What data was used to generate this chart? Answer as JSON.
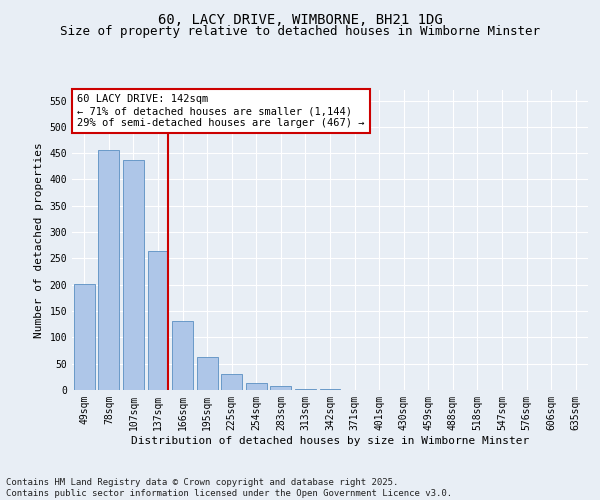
{
  "title1": "60, LACY DRIVE, WIMBORNE, BH21 1DG",
  "title2": "Size of property relative to detached houses in Wimborne Minster",
  "xlabel": "Distribution of detached houses by size in Wimborne Minster",
  "ylabel": "Number of detached properties",
  "categories": [
    "49sqm",
    "78sqm",
    "107sqm",
    "137sqm",
    "166sqm",
    "195sqm",
    "225sqm",
    "254sqm",
    "283sqm",
    "313sqm",
    "342sqm",
    "371sqm",
    "401sqm",
    "430sqm",
    "459sqm",
    "488sqm",
    "518sqm",
    "547sqm",
    "576sqm",
    "606sqm",
    "635sqm"
  ],
  "values": [
    201,
    456,
    437,
    265,
    132,
    62,
    31,
    14,
    7,
    2,
    1,
    0,
    0,
    0,
    0,
    0,
    0,
    0,
    0,
    0,
    0
  ],
  "bar_color": "#aec6e8",
  "bar_edge_color": "#5a8fc2",
  "vline_color": "#cc0000",
  "annotation_text": "60 LACY DRIVE: 142sqm\n← 71% of detached houses are smaller (1,144)\n29% of semi-detached houses are larger (467) →",
  "annotation_box_color": "#ffffff",
  "annotation_box_edge_color": "#cc0000",
  "ylim": [
    0,
    570
  ],
  "yticks": [
    0,
    50,
    100,
    150,
    200,
    250,
    300,
    350,
    400,
    450,
    500,
    550
  ],
  "bg_color": "#e8eef5",
  "grid_color": "#ffffff",
  "footer": "Contains HM Land Registry data © Crown copyright and database right 2025.\nContains public sector information licensed under the Open Government Licence v3.0.",
  "title_fontsize": 10,
  "subtitle_fontsize": 9,
  "axis_label_fontsize": 8,
  "tick_fontsize": 7,
  "annotation_fontsize": 7.5,
  "footer_fontsize": 6.5
}
